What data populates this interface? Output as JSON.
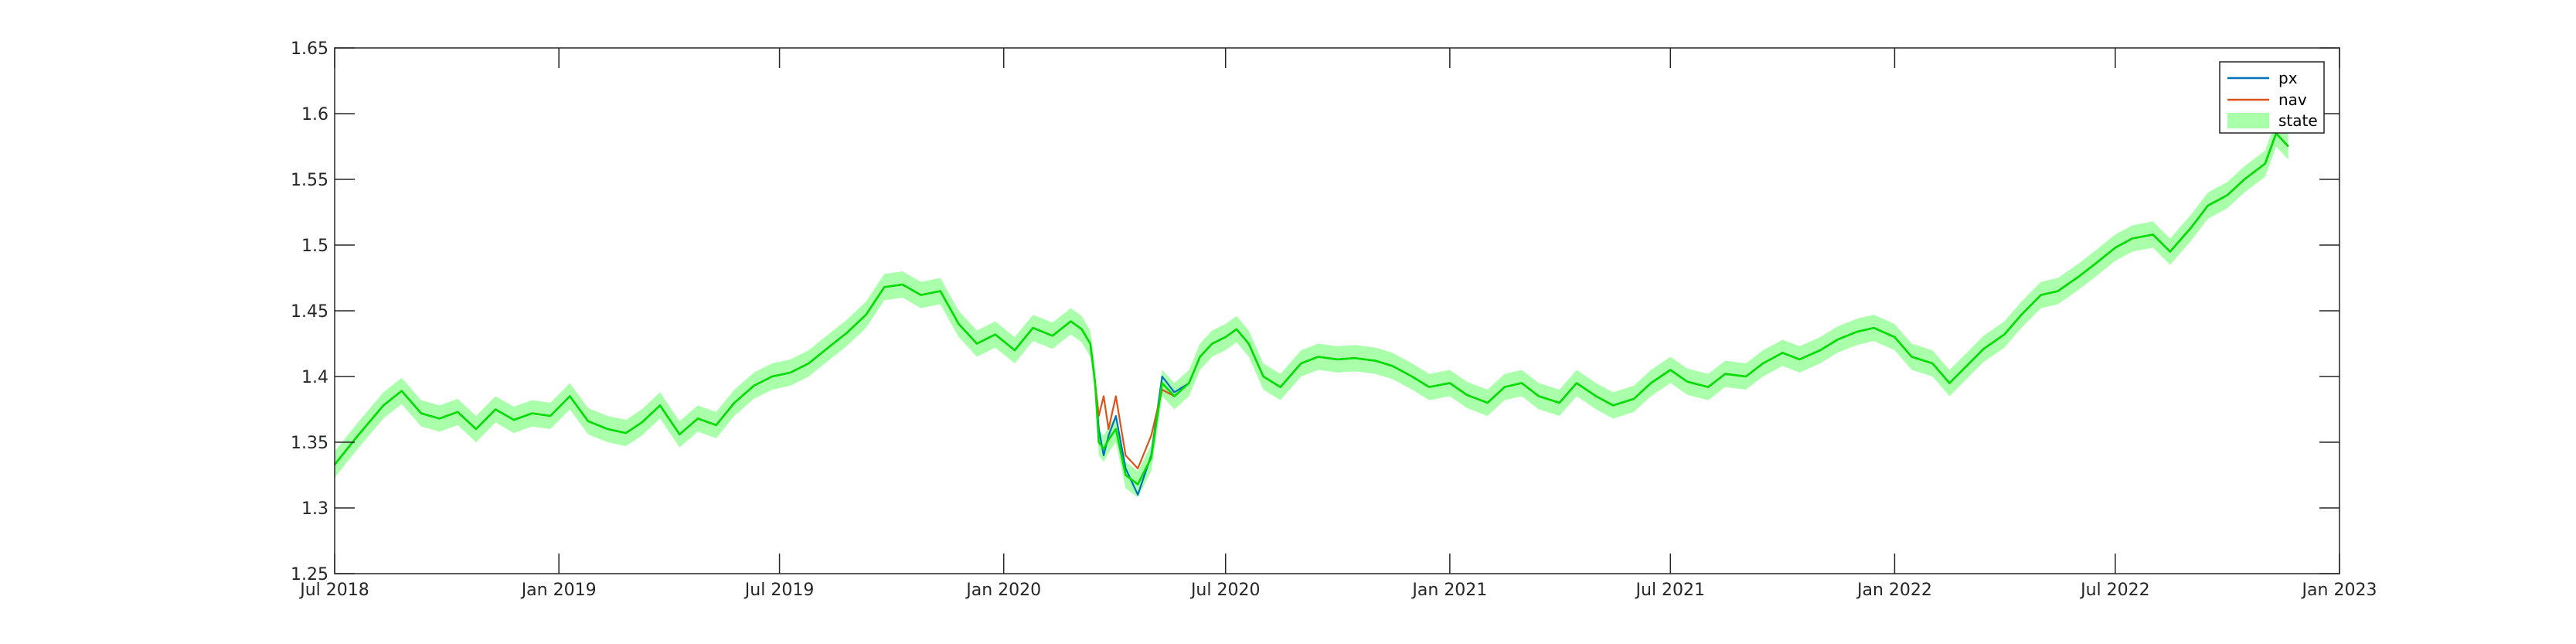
{
  "chart_data": {
    "type": "line",
    "title": "",
    "xlabel": "",
    "ylabel": "",
    "ylim": [
      1.25,
      1.65
    ],
    "yticks": [
      1.25,
      1.3,
      1.35,
      1.4,
      1.45,
      1.5,
      1.55,
      1.6,
      1.65
    ],
    "ytick_labels": [
      "1.25",
      "1.3",
      "1.35",
      "1.4",
      "1.45",
      "1.5",
      "1.55",
      "1.6",
      "1.65"
    ],
    "xlim": [
      "2018-07-01",
      "2023-01-01"
    ],
    "xticks": [
      "2018-07-01",
      "2019-01-01",
      "2019-07-01",
      "2020-01-01",
      "2020-07-01",
      "2021-01-01",
      "2021-07-01",
      "2022-01-01",
      "2022-07-01",
      "2023-01-01"
    ],
    "xtick_labels": [
      "Jul 2018",
      "Jan 2019",
      "Jul 2019",
      "Jan 2020",
      "Jul 2020",
      "Jan 2021",
      "Jul 2021",
      "Jan 2022",
      "Jul 2022",
      "Jan 2023"
    ],
    "grid": false,
    "box": true,
    "legend": {
      "position": "top-right",
      "entries": [
        {
          "label": "px",
          "color": "#0072BD",
          "kind": "line"
        },
        {
          "label": "nav",
          "color": "#D95319",
          "kind": "line"
        },
        {
          "label": "state",
          "color": "#aaffaa",
          "kind": "patch"
        }
      ]
    },
    "colors": {
      "px": "#0072BD",
      "nav": "#D95319",
      "state_band": "#aaffaa",
      "state_line": "#00dd00"
    },
    "state_band_halfwidth": 0.01,
    "x": [
      "2018-07-01",
      "2018-07-20",
      "2018-08-10",
      "2018-08-25",
      "2018-09-10",
      "2018-09-25",
      "2018-10-10",
      "2018-10-25",
      "2018-11-10",
      "2018-11-25",
      "2018-12-10",
      "2018-12-25",
      "2019-01-10",
      "2019-01-25",
      "2019-02-10",
      "2019-02-25",
      "2019-03-10",
      "2019-03-25",
      "2019-04-10",
      "2019-04-25",
      "2019-05-10",
      "2019-05-25",
      "2019-06-10",
      "2019-06-25",
      "2019-07-10",
      "2019-07-25",
      "2019-08-10",
      "2019-08-25",
      "2019-09-10",
      "2019-09-25",
      "2019-10-10",
      "2019-10-25",
      "2019-11-10",
      "2019-11-25",
      "2019-12-10",
      "2019-12-25",
      "2020-01-10",
      "2020-01-25",
      "2020-02-10",
      "2020-02-25",
      "2020-03-05",
      "2020-03-12",
      "2020-03-16",
      "2020-03-19",
      "2020-03-23",
      "2020-03-27",
      "2020-04-02",
      "2020-04-10",
      "2020-04-20",
      "2020-05-01",
      "2020-05-10",
      "2020-05-20",
      "2020-06-01",
      "2020-06-10",
      "2020-06-20",
      "2020-07-01",
      "2020-07-10",
      "2020-07-20",
      "2020-08-01",
      "2020-08-15",
      "2020-09-01",
      "2020-09-15",
      "2020-10-01",
      "2020-10-15",
      "2020-11-01",
      "2020-11-15",
      "2020-12-01",
      "2020-12-15",
      "2021-01-01",
      "2021-01-15",
      "2021-02-01",
      "2021-02-15",
      "2021-03-01",
      "2021-03-15",
      "2021-04-01",
      "2021-04-15",
      "2021-05-01",
      "2021-05-15",
      "2021-06-01",
      "2021-06-15",
      "2021-07-01",
      "2021-07-15",
      "2021-08-01",
      "2021-08-15",
      "2021-09-01",
      "2021-09-15",
      "2021-10-01",
      "2021-10-15",
      "2021-11-01",
      "2021-11-15",
      "2021-12-01",
      "2021-12-15",
      "2022-01-01",
      "2022-01-15",
      "2022-02-01",
      "2022-02-15",
      "2022-03-01",
      "2022-03-15",
      "2022-04-01",
      "2022-04-15",
      "2022-05-01",
      "2022-05-15",
      "2022-06-01",
      "2022-06-15",
      "2022-07-01",
      "2022-07-15",
      "2022-08-01",
      "2022-08-15",
      "2022-09-01",
      "2022-09-15",
      "2022-10-01",
      "2022-10-15",
      "2022-11-01",
      "2022-11-10",
      "2022-11-20"
    ],
    "series": [
      {
        "name": "px",
        "values": [
          1.333,
          1.355,
          1.378,
          1.389,
          1.372,
          1.368,
          1.373,
          1.36,
          1.375,
          1.367,
          1.372,
          1.37,
          1.385,
          1.366,
          1.36,
          1.357,
          1.365,
          1.378,
          1.356,
          1.368,
          1.363,
          1.38,
          1.393,
          1.4,
          1.403,
          1.41,
          1.422,
          1.433,
          1.447,
          1.468,
          1.47,
          1.462,
          1.465,
          1.44,
          1.425,
          1.432,
          1.42,
          1.437,
          1.431,
          1.442,
          1.436,
          1.425,
          1.395,
          1.36,
          1.34,
          1.355,
          1.37,
          1.33,
          1.31,
          1.34,
          1.4,
          1.388,
          1.395,
          1.415,
          1.425,
          1.43,
          1.436,
          1.425,
          1.4,
          1.392,
          1.41,
          1.415,
          1.413,
          1.414,
          1.412,
          1.408,
          1.4,
          1.392,
          1.395,
          1.386,
          1.38,
          1.392,
          1.395,
          1.385,
          1.38,
          1.395,
          1.385,
          1.378,
          1.383,
          1.395,
          1.405,
          1.396,
          1.392,
          1.402,
          1.4,
          1.41,
          1.418,
          1.413,
          1.42,
          1.428,
          1.434,
          1.437,
          1.43,
          1.415,
          1.41,
          1.395,
          1.408,
          1.421,
          1.432,
          1.447,
          1.462,
          1.465,
          1.476,
          1.486,
          1.498,
          1.505,
          1.508,
          1.495,
          1.513,
          1.53,
          1.538,
          1.55,
          1.562,
          1.585,
          1.575
        ]
      },
      {
        "name": "nav",
        "values": [
          1.333,
          1.355,
          1.378,
          1.389,
          1.372,
          1.368,
          1.373,
          1.36,
          1.375,
          1.367,
          1.372,
          1.37,
          1.385,
          1.366,
          1.36,
          1.357,
          1.365,
          1.378,
          1.356,
          1.368,
          1.363,
          1.38,
          1.393,
          1.4,
          1.403,
          1.41,
          1.422,
          1.433,
          1.447,
          1.468,
          1.47,
          1.462,
          1.465,
          1.44,
          1.425,
          1.432,
          1.42,
          1.437,
          1.431,
          1.442,
          1.436,
          1.425,
          1.395,
          1.37,
          1.385,
          1.36,
          1.385,
          1.34,
          1.33,
          1.355,
          1.39,
          1.385,
          1.395,
          1.415,
          1.425,
          1.43,
          1.436,
          1.425,
          1.4,
          1.392,
          1.41,
          1.415,
          1.413,
          1.414,
          1.412,
          1.408,
          1.4,
          1.392,
          1.395,
          1.386,
          1.38,
          1.392,
          1.395,
          1.385,
          1.38,
          1.395,
          1.385,
          1.378,
          1.383,
          1.395,
          1.405,
          1.396,
          1.392,
          1.402,
          1.4,
          1.41,
          1.418,
          1.413,
          1.42,
          1.428,
          1.434,
          1.437,
          1.43,
          1.415,
          1.41,
          1.395,
          1.408,
          1.421,
          1.432,
          1.447,
          1.462,
          1.465,
          1.476,
          1.486,
          1.498,
          1.505,
          1.508,
          1.495,
          1.513,
          1.53,
          1.538,
          1.55,
          1.562,
          1.585,
          1.575
        ]
      },
      {
        "name": "state",
        "values": [
          1.333,
          1.355,
          1.378,
          1.389,
          1.372,
          1.368,
          1.373,
          1.36,
          1.375,
          1.367,
          1.372,
          1.37,
          1.385,
          1.366,
          1.36,
          1.357,
          1.365,
          1.378,
          1.356,
          1.368,
          1.363,
          1.38,
          1.393,
          1.4,
          1.403,
          1.41,
          1.422,
          1.433,
          1.447,
          1.468,
          1.47,
          1.462,
          1.465,
          1.44,
          1.425,
          1.432,
          1.42,
          1.437,
          1.431,
          1.442,
          1.436,
          1.425,
          1.395,
          1.35,
          1.345,
          1.352,
          1.36,
          1.325,
          1.318,
          1.338,
          1.395,
          1.385,
          1.395,
          1.415,
          1.425,
          1.43,
          1.436,
          1.425,
          1.4,
          1.392,
          1.41,
          1.415,
          1.413,
          1.414,
          1.412,
          1.408,
          1.4,
          1.392,
          1.395,
          1.386,
          1.38,
          1.392,
          1.395,
          1.385,
          1.38,
          1.395,
          1.385,
          1.378,
          1.383,
          1.395,
          1.405,
          1.396,
          1.392,
          1.402,
          1.4,
          1.41,
          1.418,
          1.413,
          1.42,
          1.428,
          1.434,
          1.437,
          1.43,
          1.415,
          1.41,
          1.395,
          1.408,
          1.421,
          1.432,
          1.447,
          1.462,
          1.465,
          1.476,
          1.486,
          1.498,
          1.505,
          1.508,
          1.495,
          1.513,
          1.53,
          1.538,
          1.55,
          1.562,
          1.585,
          1.575
        ]
      }
    ]
  }
}
